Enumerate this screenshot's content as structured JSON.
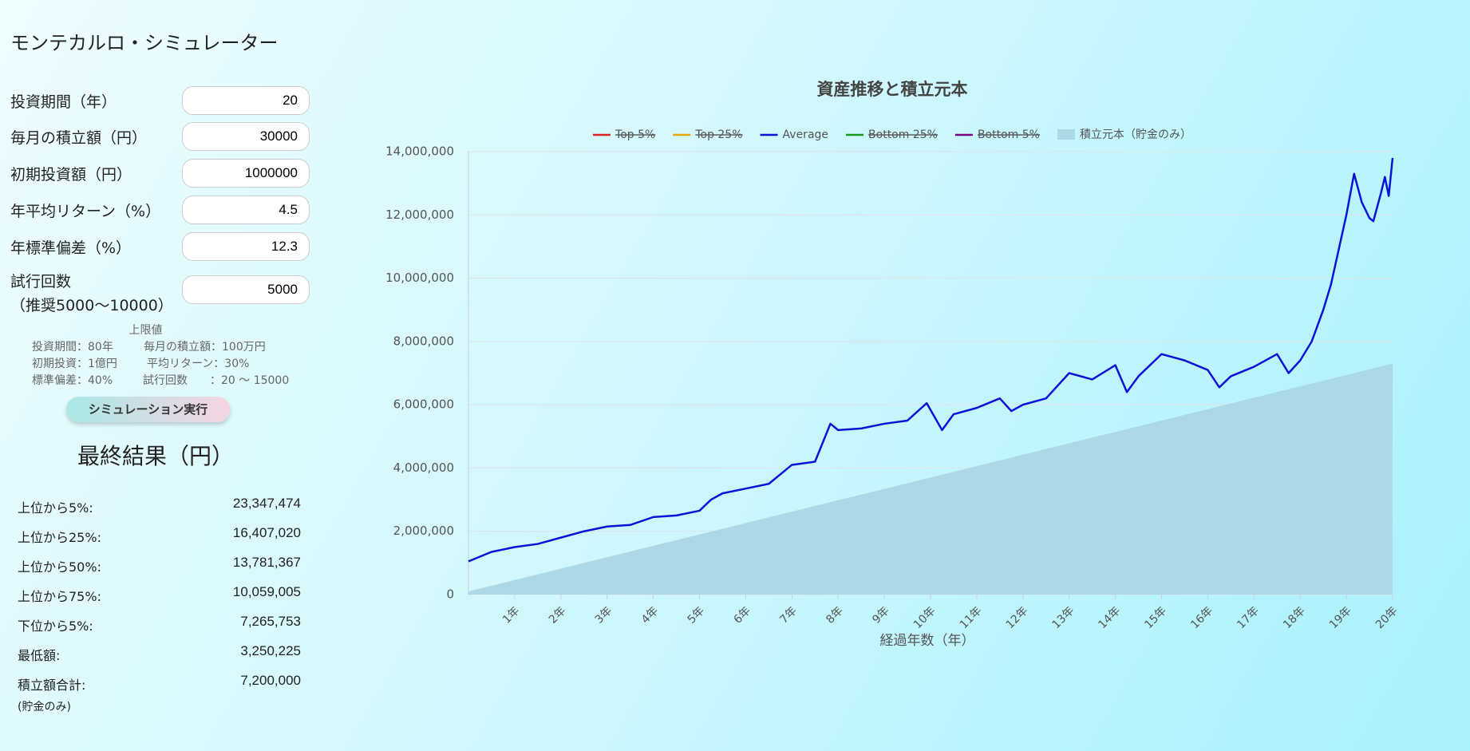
{
  "title": "モンテカルロ・シミュレーター",
  "form": {
    "fields": [
      {
        "label": "投資期間（年）",
        "value": "20"
      },
      {
        "label": "毎月の積立額（円）",
        "value": "30000"
      },
      {
        "label": "初期投資額（円）",
        "value": "1000000"
      },
      {
        "label": "年平均リターン（%）",
        "value": "4.5"
      },
      {
        "label": "年標準偏差（%）",
        "value": "12.3"
      },
      {
        "label": "試行回数",
        "sublabel": "（推奨5000〜10000）",
        "value": "5000"
      }
    ]
  },
  "limits": {
    "heading": "上限値",
    "lines": [
      [
        "投資期間：80年",
        "毎月の積立額：100万円"
      ],
      [
        "初期投資：1億円",
        "平均リターン：30%"
      ],
      [
        "標準偏差：40%",
        "試行回数　　：20 〜 15000"
      ]
    ]
  },
  "button": "シミュレーション実行",
  "results": {
    "heading": "最終結果（円）",
    "rows": [
      {
        "label": "上位から5%:",
        "value": "23,347,474"
      },
      {
        "label": "上位から25%:",
        "value": "16,407,020"
      },
      {
        "label": "上位から50%:",
        "value": "13,781,367"
      },
      {
        "label": "上位から75%:",
        "value": "10,059,005"
      },
      {
        "label": "下位から5%:",
        "value": "7,265,753"
      },
      {
        "label": "最低額:",
        "value": "3,250,225"
      },
      {
        "label": "積立額合計:",
        "value": "7,200,000"
      }
    ],
    "note": "(貯金のみ)"
  },
  "chart_data": {
    "type": "line",
    "title": "資産推移と積立元本",
    "xlabel": "経過年数（年）",
    "x": [
      0,
      6,
      12,
      18,
      24,
      30,
      36,
      42,
      48,
      54,
      60,
      63,
      66,
      72,
      78,
      84,
      90,
      94,
      96,
      102,
      108,
      114,
      119,
      123,
      126,
      132,
      138,
      141,
      144,
      150,
      156,
      162,
      168,
      171,
      174,
      180,
      186,
      192,
      195,
      198,
      204,
      210,
      213,
      216,
      219,
      222,
      224,
      226,
      228,
      230,
      232,
      234,
      235,
      237,
      238,
      239,
      240
    ],
    "series": [
      {
        "name": "Top 5%",
        "color": "#dd2222",
        "hidden": true
      },
      {
        "name": "Top 25%",
        "color": "#e6a817",
        "hidden": true
      },
      {
        "name": "Average",
        "color": "#0a14d8",
        "values": [
          1050000,
          1350000,
          1500000,
          1600000,
          1800000,
          2000000,
          2150000,
          2200000,
          2450000,
          2500000,
          2650000,
          3000000,
          3200000,
          3350000,
          3500000,
          4100000,
          4200000,
          5400000,
          5200000,
          5250000,
          5400000,
          5500000,
          6050000,
          5200000,
          5700000,
          5900000,
          6200000,
          5800000,
          6000000,
          6200000,
          7000000,
          6800000,
          7250000,
          6400000,
          6900000,
          7600000,
          7400000,
          7100000,
          6550000,
          6900000,
          7200000,
          7600000,
          7000000,
          7400000,
          8000000,
          9000000,
          9800000,
          10900000,
          12000000,
          13300000,
          12400000,
          11900000,
          11800000,
          12700000,
          13200000,
          12600000,
          13800000
        ]
      },
      {
        "name": "Bottom 25%",
        "color": "#1a9a1a",
        "hidden": true
      },
      {
        "name": "Bottom 5%",
        "color": "#800080",
        "hidden": true
      },
      {
        "name": "積立元本（貯金のみ）",
        "type": "area",
        "color": "#add8e6",
        "x": [
          0,
          240
        ],
        "values": [
          100000,
          7300000
        ]
      }
    ],
    "xlim": [
      0,
      240
    ],
    "xticks": [
      {
        "value": 12,
        "label": "1年"
      },
      {
        "value": 24,
        "label": "2年"
      },
      {
        "value": 36,
        "label": "3年"
      },
      {
        "value": 48,
        "label": "4年"
      },
      {
        "value": 60,
        "label": "5年"
      },
      {
        "value": 72,
        "label": "6年"
      },
      {
        "value": 84,
        "label": "7年"
      },
      {
        "value": 96,
        "label": "8年"
      },
      {
        "value": 108,
        "label": "9年"
      },
      {
        "value": 120,
        "label": "10年"
      },
      {
        "value": 132,
        "label": "11年"
      },
      {
        "value": 144,
        "label": "12年"
      },
      {
        "value": 156,
        "label": "13年"
      },
      {
        "value": 168,
        "label": "14年"
      },
      {
        "value": 180,
        "label": "15年"
      },
      {
        "value": 192,
        "label": "16年"
      },
      {
        "value": 204,
        "label": "17年"
      },
      {
        "value": 216,
        "label": "18年"
      },
      {
        "value": 228,
        "label": "19年"
      },
      {
        "value": 240,
        "label": "20年"
      }
    ],
    "ylim": [
      0,
      14000000
    ],
    "yticks": [
      0,
      {
        "value": 2000000,
        "label": "2,000,000"
      },
      {
        "value": 4000000,
        "label": "4,000,000"
      },
      {
        "value": 6000000,
        "label": "6,000,000"
      },
      {
        "value": 8000000,
        "label": "8,000,000"
      },
      {
        "value": 10000000,
        "label": "10,000,000"
      },
      {
        "value": 12000000,
        "label": "12,000,000"
      },
      {
        "value": 14000000,
        "label": "14,000,000"
      }
    ],
    "grid": true
  }
}
